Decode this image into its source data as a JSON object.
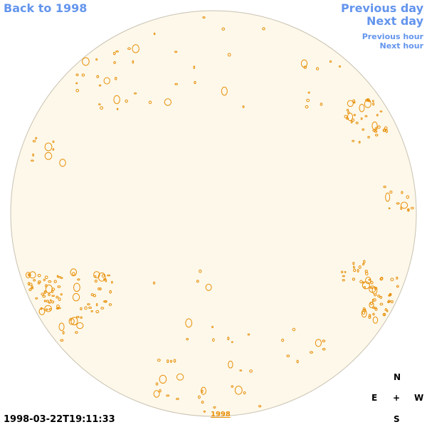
{
  "navigation": {
    "back": "Back to 1998",
    "previous_day": "Previous day",
    "next_day": "Next day",
    "previous_hour": "Previous hour",
    "next_hour": "Next hour"
  },
  "timestamp": "1998-03-22T19:11:33",
  "compass": {
    "north": "N",
    "east": "E",
    "center": "+",
    "west": "W",
    "south": "S"
  },
  "footer_link": "1998"
}
